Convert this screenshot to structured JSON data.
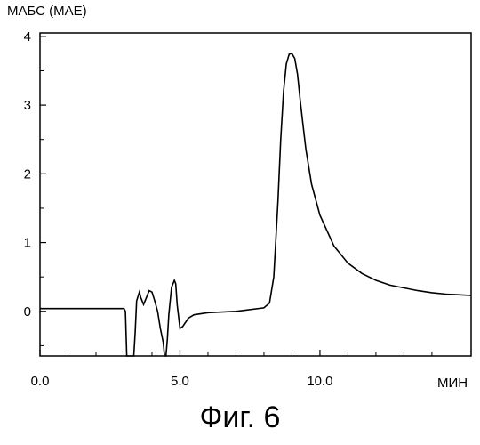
{
  "chart_data": {
    "type": "line",
    "ylabel": "МАБС (МАЕ)",
    "xlabel": "МИН",
    "caption": "Фиг. 6",
    "xlim": [
      0,
      15.4
    ],
    "ylim": [
      -0.65,
      4.05
    ],
    "xticks": [
      0,
      5,
      10
    ],
    "xtick_labels": [
      "0.0",
      "5.0",
      "10.0"
    ],
    "yticks": [
      0,
      1,
      2,
      3,
      4
    ],
    "ytick_labels": [
      "0",
      "1",
      "2",
      "3",
      "4"
    ],
    "grid": false,
    "series": [
      {
        "x": [
          0,
          0.5,
          1.0,
          1.5,
          2.0,
          2.5,
          3.0,
          3.05,
          3.1,
          3.35,
          3.4,
          3.45,
          3.55,
          3.6,
          3.7,
          3.8,
          3.9,
          4.0,
          4.1,
          4.2,
          4.3,
          4.4,
          4.45,
          4.5,
          4.55,
          4.6,
          4.7,
          4.8,
          4.85,
          4.9,
          5.0,
          5.1,
          5.3,
          5.5,
          6.0,
          7.0,
          8.0,
          8.2,
          8.35,
          8.5,
          8.6,
          8.7,
          8.8,
          8.9,
          9.0,
          9.1,
          9.2,
          9.3,
          9.4,
          9.5,
          9.7,
          10.0,
          10.5,
          11.0,
          11.5,
          12.0,
          12.5,
          13.0,
          13.5,
          14.0,
          14.5,
          15.0,
          15.4
        ],
        "y": [
          0.04,
          0.04,
          0.04,
          0.04,
          0.04,
          0.04,
          0.04,
          0.0,
          -0.65,
          -0.65,
          -0.3,
          0.15,
          0.28,
          0.2,
          0.1,
          0.2,
          0.3,
          0.28,
          0.15,
          0.0,
          -0.25,
          -0.45,
          -0.65,
          -0.65,
          -0.4,
          -0.05,
          0.35,
          0.45,
          0.4,
          0.1,
          -0.25,
          -0.22,
          -0.1,
          -0.05,
          -0.02,
          0.0,
          0.05,
          0.12,
          0.5,
          1.6,
          2.5,
          3.2,
          3.6,
          3.74,
          3.75,
          3.68,
          3.45,
          3.05,
          2.7,
          2.35,
          1.85,
          1.4,
          0.95,
          0.7,
          0.55,
          0.45,
          0.38,
          0.34,
          0.3,
          0.27,
          0.25,
          0.24,
          0.23
        ]
      }
    ]
  }
}
